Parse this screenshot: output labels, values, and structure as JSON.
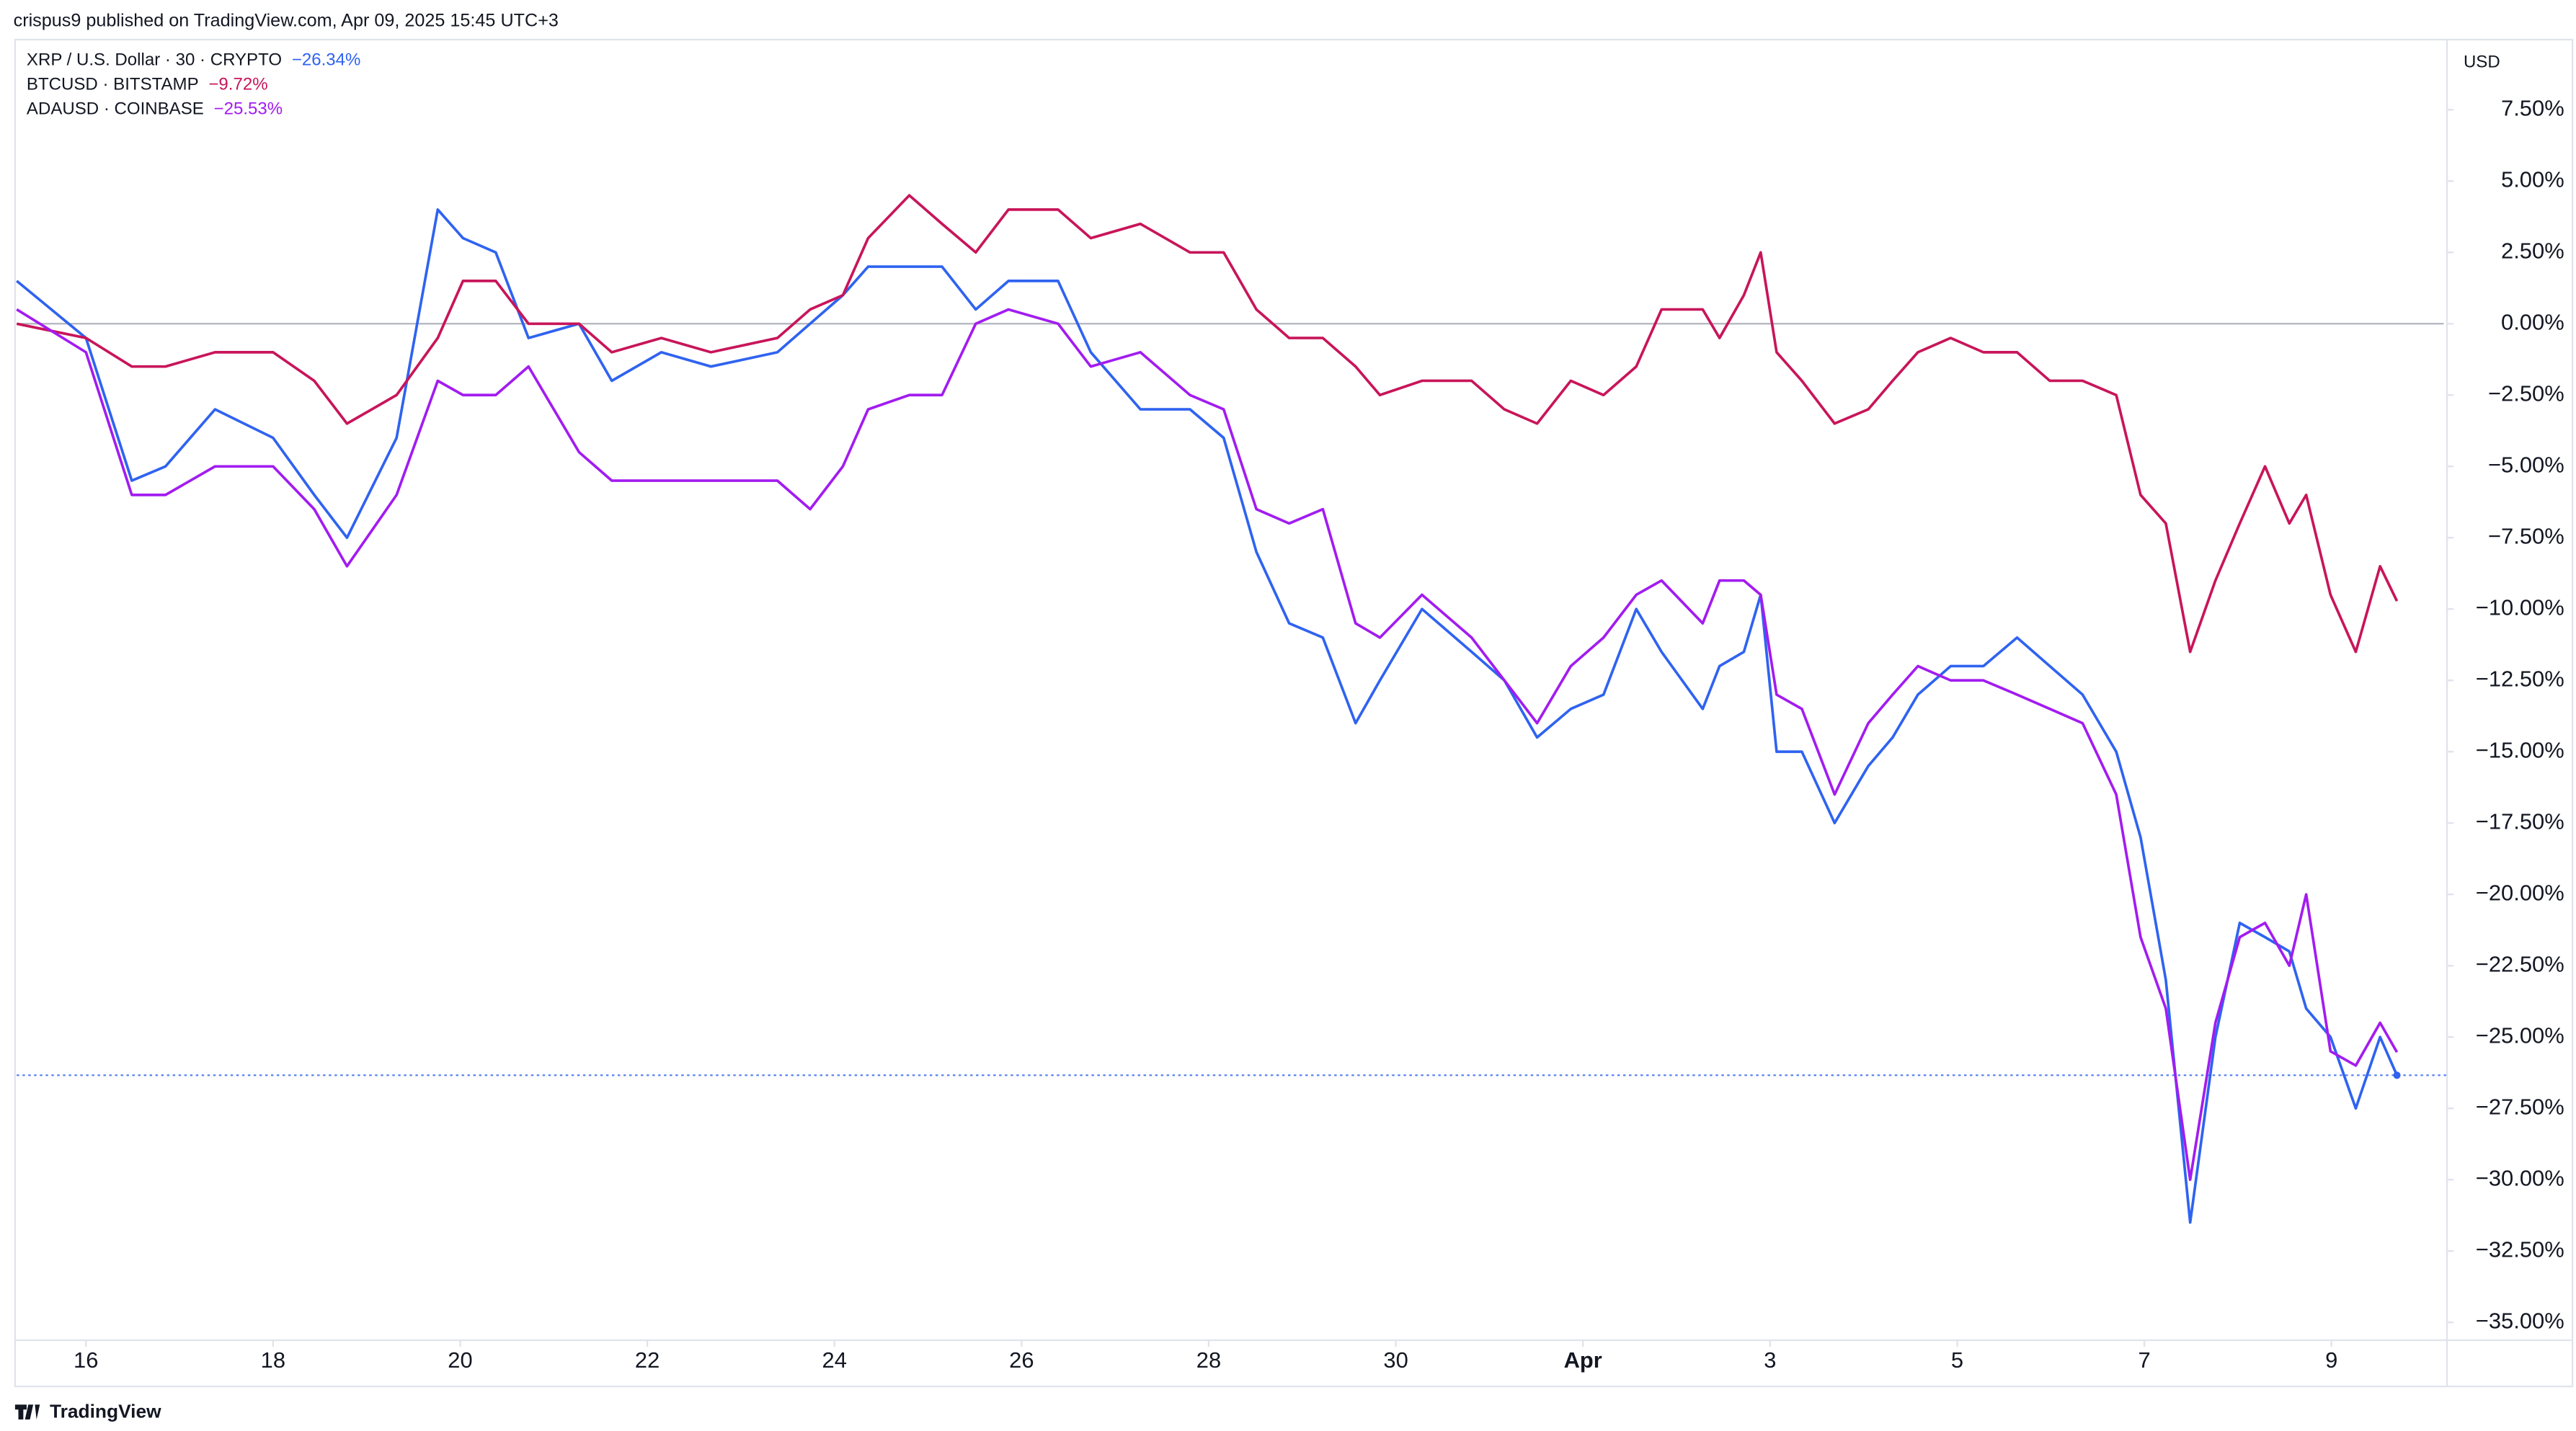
{
  "header": "crispus9 published on TradingView.com, Apr 09, 2025 15:45 UTC+3",
  "footer": "TradingView",
  "chart_data": {
    "type": "line",
    "y_unit": "USD",
    "x": [
      15.26,
      16,
      16.49,
      16.85,
      17.38,
      18,
      18.44,
      18.79,
      19.32,
      19.76,
      20.03,
      20.38,
      20.73,
      21.27,
      21.62,
      22.15,
      22.68,
      23.39,
      23.74,
      24.09,
      24.36,
      24.8,
      25.15,
      25.51,
      25.86,
      26.39,
      26.74,
      27.27,
      27.8,
      28.16,
      28.51,
      28.86,
      29.22,
      29.57,
      29.83,
      30.28,
      30.81,
      31.16,
      31.51,
      31.87,
      32.22,
      32.57,
      32.84,
      33.28,
      33.46,
      33.72,
      33.9,
      34.07,
      34.34,
      34.69,
      35.05,
      35.31,
      35.58,
      35.93,
      36.28,
      36.64,
      36.99,
      37.34,
      37.7,
      37.96,
      38.23,
      38.49,
      38.76,
      39.02,
      39.29,
      39.55,
      39.73,
      39.99,
      40.26,
      40.52,
      40.7
    ],
    "series": [
      {
        "name": "XRP / U.S. Dollar · 30 · CRYPTO",
        "last_label": "−26.34%",
        "color": "#2f63f0",
        "values": [
          1.5,
          -0.5,
          -5.5,
          -5,
          -3,
          -4,
          -6,
          -7.5,
          -4,
          4,
          3,
          2.5,
          -0.5,
          0,
          -2,
          -1,
          -1.5,
          -1,
          0,
          1,
          2,
          2,
          2,
          0.5,
          1.5,
          1.5,
          -1,
          -3,
          -3,
          -4,
          -8,
          -10.5,
          -11,
          -14,
          -12.5,
          -10,
          -11.5,
          -12.5,
          -14.5,
          -13.5,
          -13,
          -10,
          -11.5,
          -13.5,
          -12,
          -11.5,
          -9.5,
          -15,
          -15,
          -17.5,
          -15.5,
          -14.5,
          -13,
          -12,
          -12,
          -11,
          -12,
          -13,
          -15,
          -18,
          -23,
          -31.5,
          -25,
          -21,
          -21.5,
          -22,
          -24,
          -25,
          -27.5,
          -25,
          -26.34
        ]
      },
      {
        "name": "BTCUSD · BITSTAMP",
        "last_label": "−9.72%",
        "color": "#c8155a",
        "values": [
          0,
          -0.5,
          -1.5,
          -1.5,
          -1,
          -1,
          -2,
          -3.5,
          -2.5,
          -0.5,
          1.5,
          1.5,
          0,
          0,
          -1,
          -0.5,
          -1,
          -0.5,
          0.5,
          1,
          3,
          4.5,
          3.5,
          2.5,
          4,
          4,
          3,
          3.5,
          2.5,
          2.5,
          0.5,
          -0.5,
          -0.5,
          -1.5,
          -2.5,
          -2,
          -2,
          -3,
          -3.5,
          -2,
          -2.5,
          -1.5,
          0.5,
          0.5,
          -0.5,
          1,
          2.5,
          -1,
          -2,
          -3.5,
          -3,
          -2,
          -1,
          -0.5,
          -1,
          -1,
          -2,
          -2,
          -2.5,
          -6,
          -7,
          -11.5,
          -9,
          -7,
          -5,
          -7,
          -6,
          -9.5,
          -11.5,
          -8.5,
          -9.72
        ]
      },
      {
        "name": "ADAUSD · COINBASE",
        "last_label": "−25.53%",
        "color": "#a21cf0",
        "values": [
          0.5,
          -1,
          -6,
          -6,
          -5,
          -5,
          -6.5,
          -8.5,
          -6,
          -2,
          -2.5,
          -2.5,
          -1.5,
          -4.5,
          -5.5,
          -5.5,
          -5.5,
          -5.5,
          -6.5,
          -5,
          -3,
          -2.5,
          -2.5,
          0,
          0.5,
          0,
          -1.5,
          -1,
          -2.5,
          -3,
          -6.5,
          -7,
          -6.5,
          -10.5,
          -11,
          -9.5,
          -11,
          -12.5,
          -14,
          -12,
          -11,
          -9.5,
          -9,
          -10.5,
          -9,
          -9,
          -9.5,
          -13,
          -13.5,
          -16.5,
          -14,
          -13,
          -12,
          -12.5,
          -12.5,
          -13,
          -13.5,
          -14,
          -16.5,
          -21.5,
          -24,
          -30,
          -24.5,
          -21.5,
          -21,
          -22.5,
          -20,
          -25.5,
          -26,
          -24.5,
          -25.53
        ]
      }
    ],
    "baseline": 0,
    "xlim": [
      15.26,
      41.2
    ],
    "xticks": [
      16,
      18,
      20,
      22,
      24,
      26,
      28,
      30,
      {
        "value": 32,
        "label": "Apr"
      },
      {
        "value": 34,
        "label": "3"
      },
      {
        "value": 36,
        "label": "5"
      },
      {
        "value": 38,
        "label": "7"
      },
      {
        "value": 40,
        "label": "9"
      }
    ],
    "ylim": [
      -35.8,
      9.9
    ],
    "yticks": [
      {
        "value": 7.5,
        "label": "7.50%"
      },
      {
        "value": 5,
        "label": "5.00%"
      },
      {
        "value": 2.5,
        "label": "2.50%"
      },
      {
        "value": 0,
        "label": "0.00%"
      },
      {
        "value": -2.5,
        "label": "−2.50%"
      },
      {
        "value": -5,
        "label": "−5.00%"
      },
      {
        "value": -7.5,
        "label": "−7.50%"
      },
      {
        "value": -10,
        "label": "−10.00%"
      },
      {
        "value": -12.5,
        "label": "−12.50%"
      },
      {
        "value": -15,
        "label": "−15.00%"
      },
      {
        "value": -17.5,
        "label": "−17.50%"
      },
      {
        "value": -20,
        "label": "−20.00%"
      },
      {
        "value": -22.5,
        "label": "−22.50%"
      },
      {
        "value": -25,
        "label": "−25.00%"
      },
      {
        "value": -27.5,
        "label": "−27.50%"
      },
      {
        "value": -30,
        "label": "−30.00%"
      },
      {
        "value": -32.5,
        "label": "−32.50%"
      },
      {
        "value": -35,
        "label": "−35.00%"
      }
    ],
    "grid": false
  }
}
